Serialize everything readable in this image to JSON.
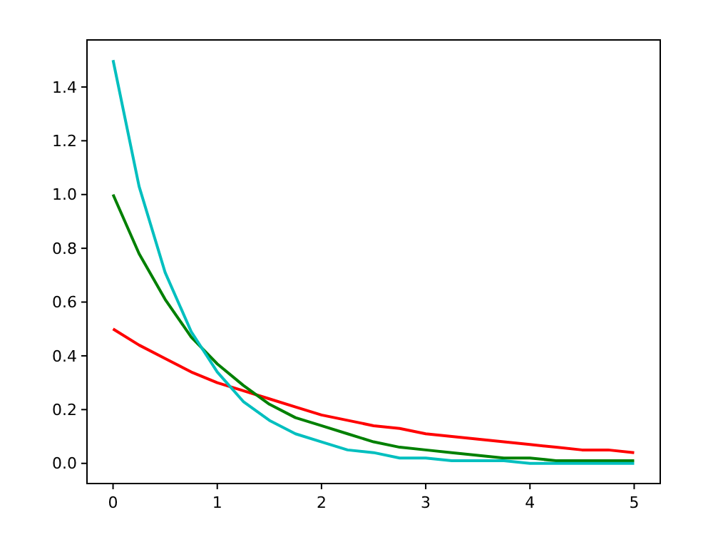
{
  "chart_data": {
    "type": "line",
    "x": [
      0,
      0.25,
      0.5,
      0.75,
      1,
      1.25,
      1.5,
      1.75,
      2,
      2.25,
      2.5,
      2.75,
      3,
      3.25,
      3.5,
      3.75,
      4,
      4.25,
      4.5,
      4.75,
      5
    ],
    "series": [
      {
        "color": "#ff0000",
        "values": [
          0.5,
          0.44,
          0.39,
          0.34,
          0.3,
          0.27,
          0.24,
          0.21,
          0.18,
          0.16,
          0.14,
          0.13,
          0.11,
          0.1,
          0.09,
          0.08,
          0.07,
          0.06,
          0.05,
          0.05,
          0.04
        ]
      },
      {
        "color": "#008000",
        "values": [
          1,
          0.78,
          0.61,
          0.47,
          0.37,
          0.29,
          0.22,
          0.17,
          0.14,
          0.11,
          0.08,
          0.06,
          0.05,
          0.04,
          0.03,
          0.02,
          0.02,
          0.01,
          0.01,
          0.01,
          0.01
        ]
      },
      {
        "color": "#00bfbf",
        "values": [
          1.5,
          1.03,
          0.71,
          0.49,
          0.34,
          0.23,
          0.16,
          0.11,
          0.08,
          0.05,
          0.04,
          0.02,
          0.02,
          0.01,
          0.01,
          0.01,
          0,
          0,
          0,
          0,
          0
        ]
      }
    ],
    "xlim": [
      -0.25,
      5.25
    ],
    "xticks": [
      0,
      1,
      2,
      3,
      4,
      5
    ],
    "ylim": [
      -0.075,
      1.575
    ],
    "yticks": [
      {
        "value": 0,
        "label": "0.0"
      },
      {
        "value": 0.2,
        "label": "0.2"
      },
      {
        "value": 0.4,
        "label": "0.4"
      },
      {
        "value": 0.6,
        "label": "0.6"
      },
      {
        "value": 0.8,
        "label": "0.8"
      },
      {
        "value": 1,
        "label": "1.0"
      },
      {
        "value": 1.2,
        "label": "1.2"
      },
      {
        "value": 1.4,
        "label": "1.4"
      }
    ],
    "line_style": "solid",
    "marker": "none"
  }
}
